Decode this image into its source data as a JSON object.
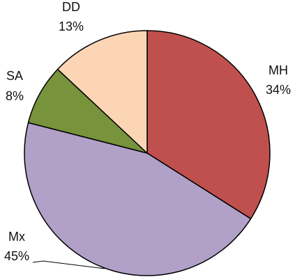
{
  "chart_data": {
    "type": "pie",
    "slices": [
      {
        "label": "MH",
        "value": 34,
        "value_label": "34%",
        "color": "#C0504D"
      },
      {
        "label": "Mx",
        "value": 45,
        "value_label": "45%",
        "color": "#B1A0C7"
      },
      {
        "label": "SA",
        "value": 8,
        "value_label": "8%",
        "color": "#77933C"
      },
      {
        "label": "DD",
        "value": 13,
        "value_label": "13%",
        "color": "#FCD5B5"
      }
    ],
    "start_angle_deg": -90,
    "direction": "clockwise"
  }
}
